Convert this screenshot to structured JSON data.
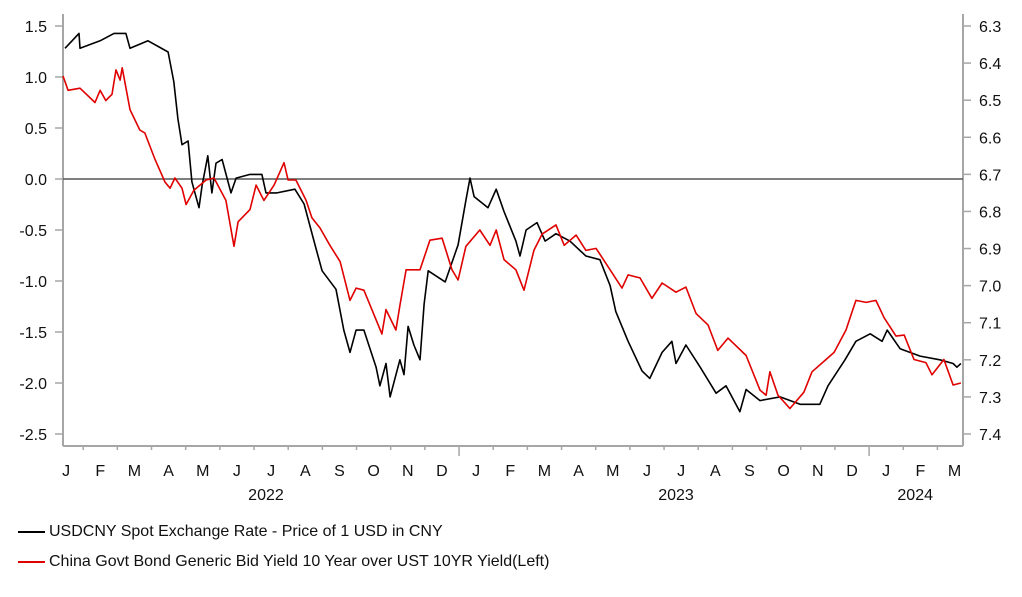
{
  "chart_data": {
    "type": "line",
    "title": "",
    "x_unit": "months from start of plotted range (Jan 2022)",
    "x_tick_labels": [
      "J",
      "F",
      "M",
      "A",
      "M",
      "J",
      "J",
      "A",
      "S",
      "O",
      "N",
      "D",
      "J",
      "F",
      "M",
      "A",
      "M",
      "J",
      "J",
      "A",
      "S",
      "O",
      "N",
      "D",
      "J",
      "F",
      "M"
    ],
    "year_labels": [
      {
        "label": "2022",
        "month": 6
      },
      {
        "label": "2023",
        "month": 18
      },
      {
        "label": "2024",
        "month": 25
      }
    ],
    "left_axis": {
      "ylim": [
        -2.5,
        1.5
      ],
      "ticks": [
        "1.5",
        "1.0",
        "0.5",
        "0.0",
        "-0.5",
        "-1.0",
        "-1.5",
        "-2.0",
        "-2.5"
      ],
      "tick_values": [
        1.5,
        1.0,
        0.5,
        0,
        -0.5,
        -1.0,
        -1.5,
        -2.0,
        -2.5
      ]
    },
    "right_axis": {
      "ylim": [
        7.4,
        6.3
      ],
      "inverted": true,
      "ticks": [
        "6.3",
        "6.4",
        "6.5",
        "6.6",
        "6.7",
        "6.8",
        "6.9",
        "7.0",
        "7.1",
        "7.2",
        "7.3",
        "7.4"
      ],
      "tick_values": [
        6.3,
        6.4,
        6.5,
        6.6,
        6.7,
        6.8,
        6.9,
        7.0,
        7.1,
        7.2,
        7.3,
        7.4
      ]
    },
    "zero_line": 0,
    "legend_position": "bottom-left",
    "series": [
      {
        "name": "USDCNY Spot Exchange Rate - Price of 1 USD in CNY",
        "axis": "right",
        "color": "#000000",
        "points": [
          [
            0.06,
            6.36
          ],
          [
            0.47,
            6.32
          ],
          [
            0.5,
            6.36
          ],
          [
            1.09,
            6.34
          ],
          [
            1.5,
            6.32
          ],
          [
            1.85,
            6.32
          ],
          [
            1.97,
            6.36
          ],
          [
            2.5,
            6.34
          ],
          [
            3.09,
            6.37
          ],
          [
            3.26,
            6.45
          ],
          [
            3.38,
            6.55
          ],
          [
            3.5,
            6.62
          ],
          [
            3.68,
            6.61
          ],
          [
            3.79,
            6.72
          ],
          [
            4.0,
            6.79
          ],
          [
            4.09,
            6.73
          ],
          [
            4.26,
            6.65
          ],
          [
            4.38,
            6.75
          ],
          [
            4.5,
            6.67
          ],
          [
            4.68,
            6.66
          ],
          [
            4.94,
            6.75
          ],
          [
            5.09,
            6.71
          ],
          [
            5.5,
            6.7
          ],
          [
            5.85,
            6.7
          ],
          [
            5.97,
            6.75
          ],
          [
            6.29,
            6.75
          ],
          [
            6.82,
            6.74
          ],
          [
            7.09,
            6.78
          ],
          [
            7.44,
            6.9
          ],
          [
            7.62,
            6.96
          ],
          [
            8.03,
            7.01
          ],
          [
            8.26,
            7.12
          ],
          [
            8.44,
            7.18
          ],
          [
            8.62,
            7.12
          ],
          [
            8.85,
            7.12
          ],
          [
            9.21,
            7.22
          ],
          [
            9.32,
            7.27
          ],
          [
            9.5,
            7.21
          ],
          [
            9.62,
            7.3
          ],
          [
            9.91,
            7.2
          ],
          [
            10.03,
            7.24
          ],
          [
            10.15,
            7.11
          ],
          [
            10.32,
            7.16
          ],
          [
            10.5,
            7.2
          ],
          [
            10.62,
            7.05
          ],
          [
            10.74,
            6.96
          ],
          [
            11.24,
            6.99
          ],
          [
            11.62,
            6.89
          ],
          [
            11.85,
            6.77
          ],
          [
            11.97,
            6.71
          ],
          [
            12.09,
            6.76
          ],
          [
            12.5,
            6.79
          ],
          [
            12.74,
            6.74
          ],
          [
            12.97,
            6.8
          ],
          [
            13.32,
            6.88
          ],
          [
            13.44,
            6.92
          ],
          [
            13.62,
            6.85
          ],
          [
            13.94,
            6.83
          ],
          [
            14.18,
            6.88
          ],
          [
            14.5,
            6.86
          ],
          [
            14.91,
            6.88
          ],
          [
            15.38,
            6.92
          ],
          [
            15.79,
            6.93
          ],
          [
            16.09,
            7.0
          ],
          [
            16.26,
            7.07
          ],
          [
            16.62,
            7.15
          ],
          [
            17.03,
            7.23
          ],
          [
            17.26,
            7.25
          ],
          [
            17.62,
            7.18
          ],
          [
            17.91,
            7.15
          ],
          [
            18.03,
            7.21
          ],
          [
            18.32,
            7.16
          ],
          [
            18.74,
            7.22
          ],
          [
            19.21,
            7.29
          ],
          [
            19.5,
            7.27
          ],
          [
            19.91,
            7.34
          ],
          [
            20.09,
            7.28
          ],
          [
            20.5,
            7.31
          ],
          [
            21.09,
            7.3
          ],
          [
            21.68,
            7.32
          ],
          [
            22.26,
            7.32
          ],
          [
            22.5,
            7.27
          ],
          [
            23.0,
            7.2
          ],
          [
            23.32,
            7.15
          ],
          [
            23.74,
            7.13
          ],
          [
            24.09,
            7.15
          ],
          [
            24.24,
            7.12
          ],
          [
            24.62,
            7.17
          ],
          [
            25.21,
            7.19
          ],
          [
            25.79,
            7.2
          ],
          [
            26.18,
            7.21
          ],
          [
            26.29,
            7.22
          ],
          [
            26.41,
            7.21
          ]
        ]
      },
      {
        "name": "China Govt Bond Generic Bid Yield 10 Year over UST 10YR Yield(Left)",
        "axis": "left",
        "color": "#e00000",
        "points": [
          [
            0,
            1.01
          ],
          [
            0.15,
            0.87
          ],
          [
            0.5,
            0.89
          ],
          [
            0.94,
            0.75
          ],
          [
            1.09,
            0.87
          ],
          [
            1.26,
            0.77
          ],
          [
            1.44,
            0.83
          ],
          [
            1.56,
            1.07
          ],
          [
            1.68,
            0.97
          ],
          [
            1.74,
            1.09
          ],
          [
            1.97,
            0.68
          ],
          [
            2.26,
            0.48
          ],
          [
            2.41,
            0.45
          ],
          [
            2.71,
            0.19
          ],
          [
            3.0,
            -0.03
          ],
          [
            3.15,
            -0.09
          ],
          [
            3.29,
            0.01
          ],
          [
            3.5,
            -0.09
          ],
          [
            3.62,
            -0.25
          ],
          [
            3.85,
            -0.11
          ],
          [
            4.21,
            -0.01
          ],
          [
            4.44,
            0.01
          ],
          [
            4.79,
            -0.21
          ],
          [
            5.03,
            -0.66
          ],
          [
            5.15,
            -0.42
          ],
          [
            5.5,
            -0.3
          ],
          [
            5.68,
            -0.06
          ],
          [
            5.91,
            -0.21
          ],
          [
            6.21,
            -0.06
          ],
          [
            6.5,
            0.16
          ],
          [
            6.62,
            -0.01
          ],
          [
            6.85,
            -0.01
          ],
          [
            7.15,
            -0.21
          ],
          [
            7.32,
            -0.38
          ],
          [
            7.56,
            -0.48
          ],
          [
            7.85,
            -0.65
          ],
          [
            8.15,
            -0.81
          ],
          [
            8.44,
            -1.19
          ],
          [
            8.62,
            -1.07
          ],
          [
            8.85,
            -1.09
          ],
          [
            9.21,
            -1.38
          ],
          [
            9.38,
            -1.52
          ],
          [
            9.5,
            -1.28
          ],
          [
            9.79,
            -1.48
          ],
          [
            9.91,
            -1.24
          ],
          [
            10.09,
            -0.89
          ],
          [
            10.5,
            -0.89
          ],
          [
            10.79,
            -0.6
          ],
          [
            11.15,
            -0.58
          ],
          [
            11.44,
            -0.89
          ],
          [
            11.62,
            -0.99
          ],
          [
            11.85,
            -0.66
          ],
          [
            12.26,
            -0.5
          ],
          [
            12.56,
            -0.65
          ],
          [
            12.74,
            -0.5
          ],
          [
            12.97,
            -0.79
          ],
          [
            13.32,
            -0.89
          ],
          [
            13.56,
            -1.09
          ],
          [
            13.85,
            -0.7
          ],
          [
            14.09,
            -0.54
          ],
          [
            14.5,
            -0.45
          ],
          [
            14.74,
            -0.65
          ],
          [
            15.09,
            -0.55
          ],
          [
            15.38,
            -0.7
          ],
          [
            15.68,
            -0.68
          ],
          [
            16.09,
            -0.89
          ],
          [
            16.44,
            -1.07
          ],
          [
            16.62,
            -0.94
          ],
          [
            16.97,
            -0.97
          ],
          [
            17.32,
            -1.17
          ],
          [
            17.62,
            -1.02
          ],
          [
            18.03,
            -1.11
          ],
          [
            18.32,
            -1.06
          ],
          [
            18.62,
            -1.32
          ],
          [
            18.97,
            -1.43
          ],
          [
            19.26,
            -1.68
          ],
          [
            19.56,
            -1.56
          ],
          [
            20.09,
            -1.73
          ],
          [
            20.5,
            -2.07
          ],
          [
            20.68,
            -2.12
          ],
          [
            20.79,
            -1.89
          ],
          [
            21.03,
            -2.12
          ],
          [
            21.38,
            -2.25
          ],
          [
            21.79,
            -2.09
          ],
          [
            22.03,
            -1.89
          ],
          [
            22.44,
            -1.77
          ],
          [
            22.68,
            -1.7
          ],
          [
            23.03,
            -1.48
          ],
          [
            23.32,
            -1.19
          ],
          [
            23.62,
            -1.21
          ],
          [
            23.91,
            -1.19
          ],
          [
            24.15,
            -1.36
          ],
          [
            24.5,
            -1.54
          ],
          [
            24.74,
            -1.53
          ],
          [
            25.03,
            -1.77
          ],
          [
            25.38,
            -1.8
          ],
          [
            25.56,
            -1.92
          ],
          [
            25.91,
            -1.77
          ],
          [
            26.18,
            -2.02
          ],
          [
            26.41,
            -2.0
          ]
        ]
      }
    ]
  },
  "legend": {
    "items": [
      {
        "label": "USDCNY Spot Exchange Rate - Price of 1 USD in CNY",
        "color": "#000000"
      },
      {
        "label": "China Govt Bond Generic Bid Yield 10 Year over UST 10YR Yield(Left)",
        "color": "#e00000"
      }
    ]
  }
}
